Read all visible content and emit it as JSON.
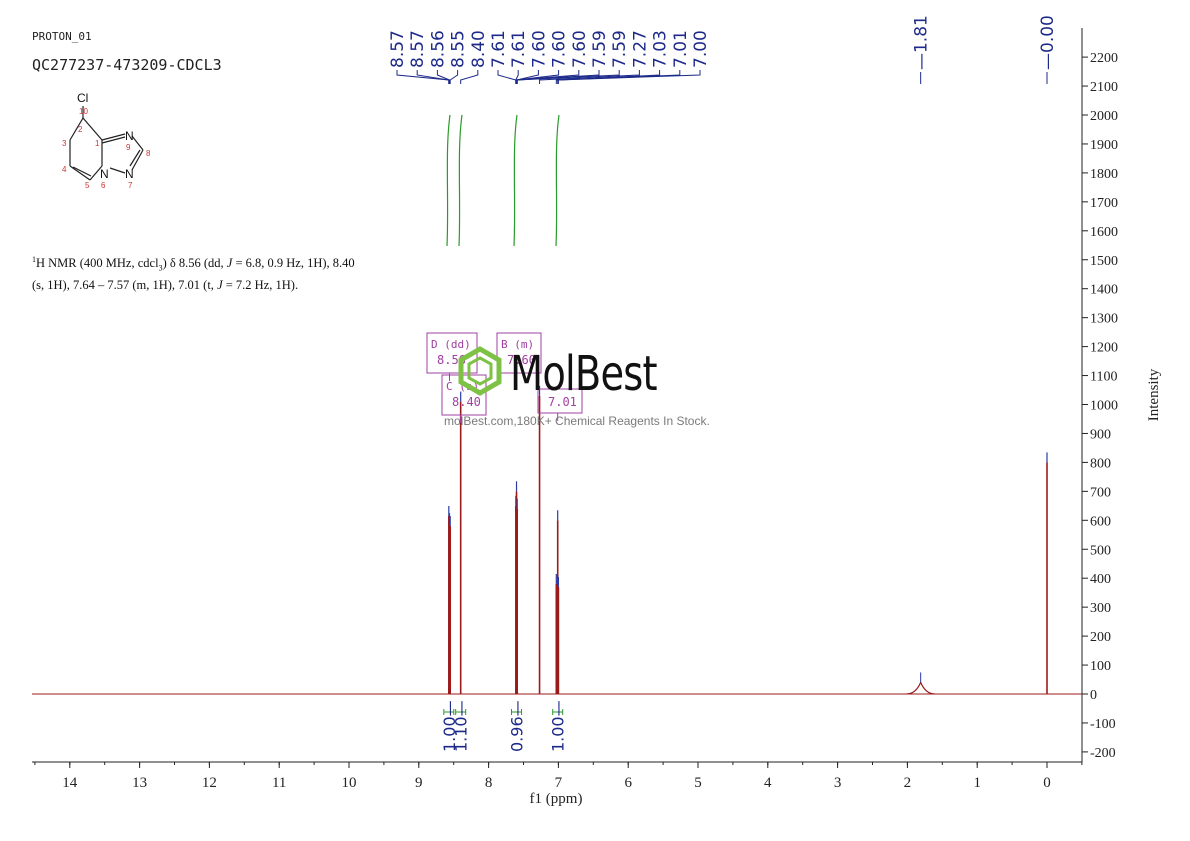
{
  "header": {
    "line1": "PROTON_01",
    "line2": "QC277237-473209-CDCL3"
  },
  "nmr_description": {
    "part1": "1",
    "part2": "H NMR (400 MHz, cdcl",
    "part3": "3",
    "part4": ") δ 8.56 (dd, ",
    "part5": "J",
    "part6": " = 6.8, 0.9 Hz, 1H), 8.40",
    "line2_a": "(s, 1H), 7.64 – 7.57 (m, 1H), 7.01 (t, ",
    "line2_b": "J",
    "line2_c": " = 7.2 Hz, 1H)."
  },
  "structure": {
    "atoms": [
      "Cl",
      "10",
      "2",
      "1",
      "3",
      "N",
      "9",
      "8",
      "4",
      "N",
      "6",
      "N",
      "5",
      "7"
    ]
  },
  "watermark": {
    "logo": "MolBest",
    "url": "molBest.com,180K+ Chemical Reagents In Stock."
  },
  "colors": {
    "spectrum": "#9b1b1b",
    "peak_labels": "#1d2a8a",
    "integral": "#2a9a2a",
    "multiplet_box": "#a040a0",
    "logo_green": "#7dc244",
    "axis": "#222222"
  },
  "chart_data": {
    "type": "line",
    "xlabel": "f1 (ppm)",
    "ylabel": "Intensity",
    "xlim": [
      14.5,
      -0.5
    ],
    "ylim": [
      -200,
      2300
    ],
    "x_ticks": [
      14,
      13,
      12,
      11,
      10,
      9,
      8,
      7,
      6,
      5,
      4,
      3,
      2,
      1,
      0
    ],
    "y_ticks": [
      -200,
      -100,
      0,
      100,
      200,
      300,
      400,
      500,
      600,
      700,
      800,
      900,
      1000,
      1100,
      1200,
      1300,
      1400,
      1500,
      1600,
      1700,
      1800,
      1900,
      2000,
      2100,
      2200
    ],
    "peaks": [
      {
        "ppm": 8.57,
        "height": 615
      },
      {
        "ppm": 8.56,
        "height": 590
      },
      {
        "ppm": 8.55,
        "height": 580
      },
      {
        "ppm": 8.4,
        "height": 1010
      },
      {
        "ppm": 7.61,
        "height": 650
      },
      {
        "ppm": 7.6,
        "height": 700
      },
      {
        "ppm": 7.59,
        "height": 640
      },
      {
        "ppm": 7.27,
        "height": 1030
      },
      {
        "ppm": 7.03,
        "height": 380
      },
      {
        "ppm": 7.01,
        "height": 600
      },
      {
        "ppm": 7.0,
        "height": 370
      },
      {
        "ppm": 1.81,
        "height": 40,
        "broad": true
      },
      {
        "ppm": 0.0,
        "height": 800
      }
    ],
    "peak_labels_group1": [
      "8.57",
      "8.57",
      "8.56",
      "8.55",
      "8.40",
      "7.61",
      "7.61",
      "7.60",
      "7.60",
      "7.60",
      "7.59",
      "7.59",
      "7.27",
      "7.03",
      "7.01",
      "7.00"
    ],
    "peak_labels_group1_ppm": [
      8.57,
      8.57,
      8.56,
      8.55,
      8.4,
      7.61,
      7.61,
      7.6,
      7.6,
      7.6,
      7.59,
      7.59,
      7.27,
      7.03,
      7.01,
      7.0
    ],
    "peak_label_181": "1.81",
    "peak_label_000": "0.00",
    "integrals": [
      {
        "ppm": 8.57,
        "value": "1.00"
      },
      {
        "ppm": 8.4,
        "value": "1.10"
      },
      {
        "ppm": 7.6,
        "value": "0.96"
      },
      {
        "ppm": 7.01,
        "value": "1.00"
      }
    ],
    "multiplets": [
      {
        "id": "D",
        "type": "dd",
        "shift": "8.56",
        "label": "D (dd)"
      },
      {
        "id": "C",
        "type": "s",
        "shift": "8.40",
        "label": "C (s)"
      },
      {
        "id": "B",
        "type": "m",
        "shift": "7.60",
        "label": "B (m)"
      },
      {
        "id": "A",
        "type": "t",
        "shift": "7.01",
        "label": "A (t)"
      }
    ]
  }
}
